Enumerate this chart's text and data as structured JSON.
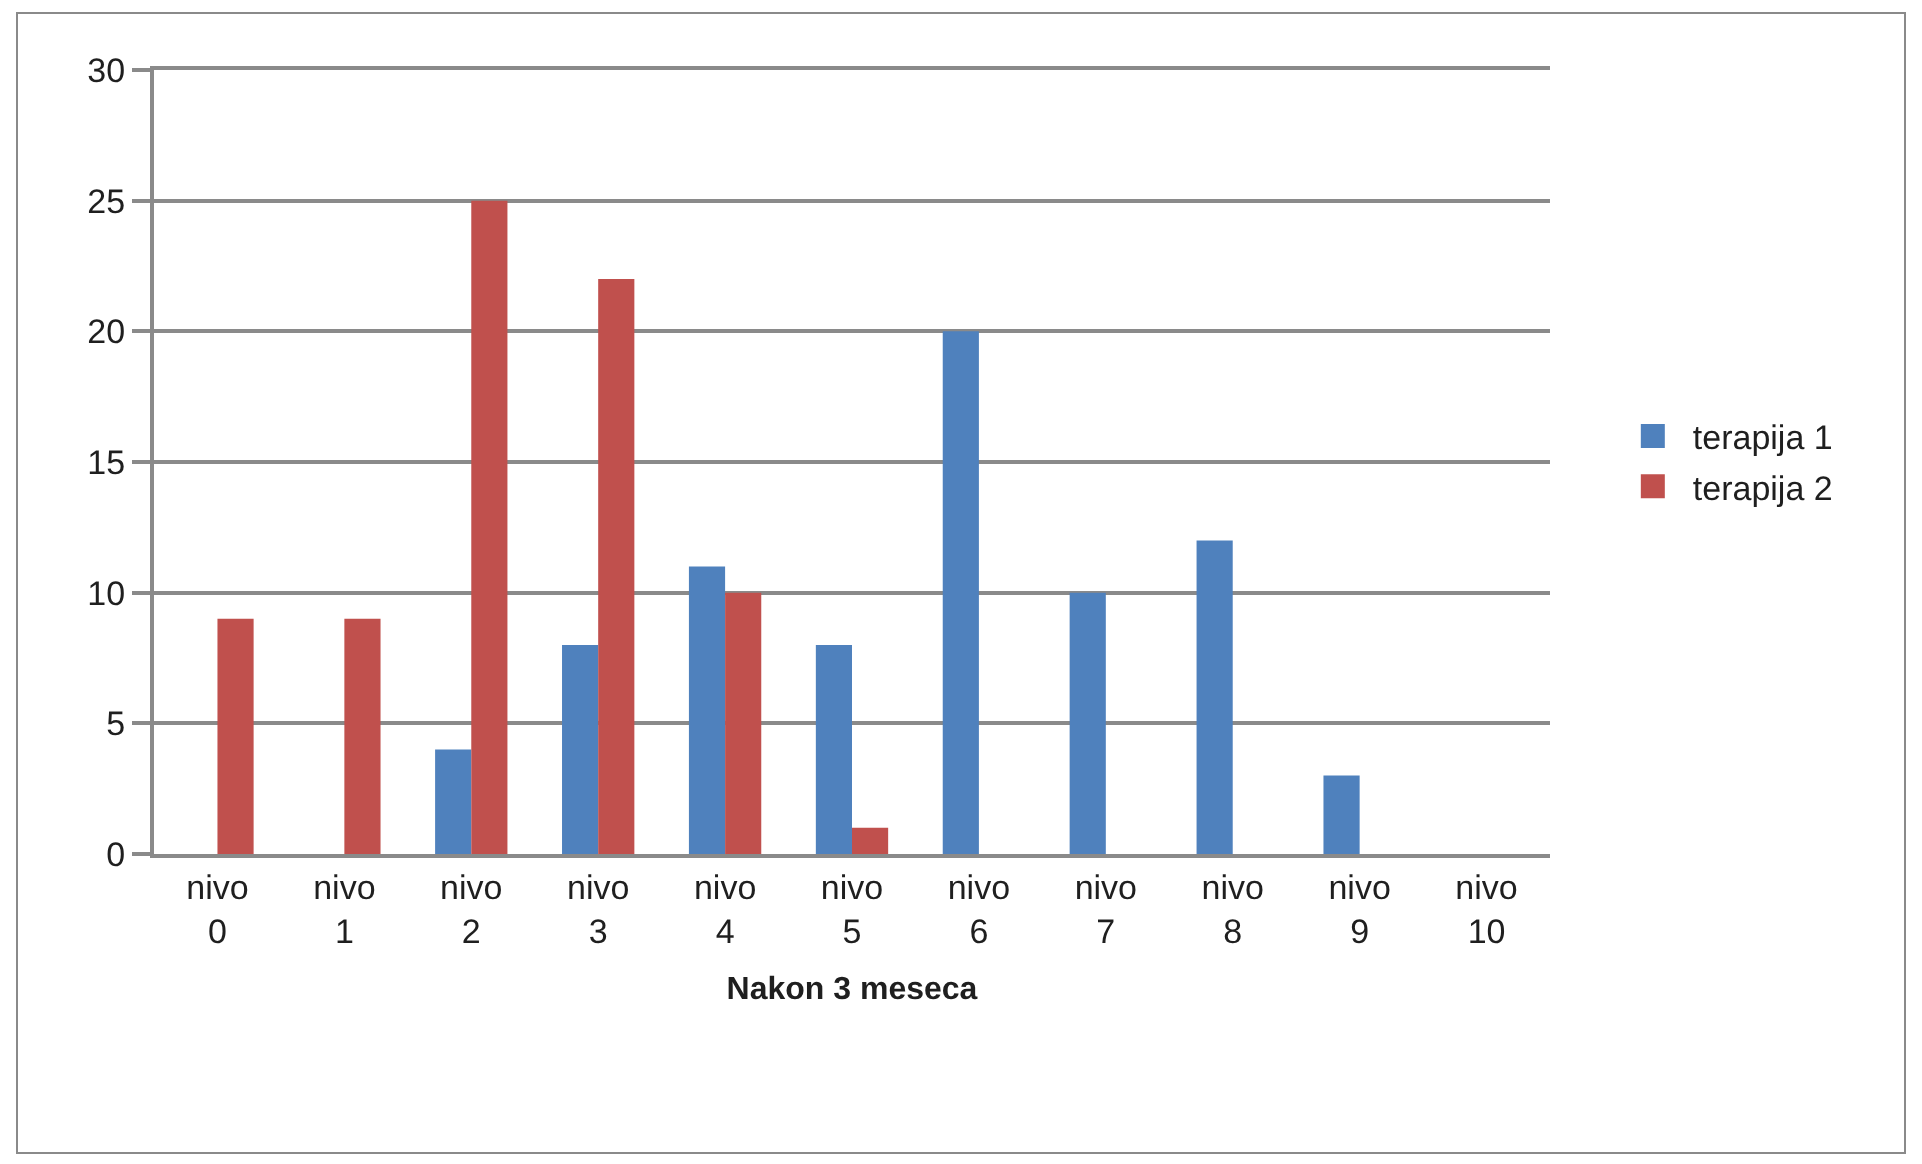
{
  "chart_data": {
    "type": "bar",
    "xlabel": "Nakon 3 meseca",
    "categories": [
      "nivo 0",
      "nivo 1",
      "nivo 2",
      "nivo 3",
      "nivo 4",
      "nivo 5",
      "nivo 6",
      "nivo 7",
      "nivo 8",
      "nivo 9",
      "nivo 10"
    ],
    "series": [
      {
        "name": "terapija 1",
        "color": "#4f81bd",
        "values": [
          0,
          0,
          4,
          8,
          11,
          8,
          20,
          10,
          12,
          3,
          0
        ]
      },
      {
        "name": "terapija 2",
        "color": "#c0504d",
        "values": [
          9,
          9,
          25,
          22,
          10,
          1,
          0,
          0,
          0,
          0,
          0
        ]
      }
    ],
    "ylim": [
      0,
      30
    ],
    "yticks": [
      0,
      5,
      10,
      15,
      20,
      25,
      30
    ],
    "grid": "y",
    "legend": "right"
  }
}
